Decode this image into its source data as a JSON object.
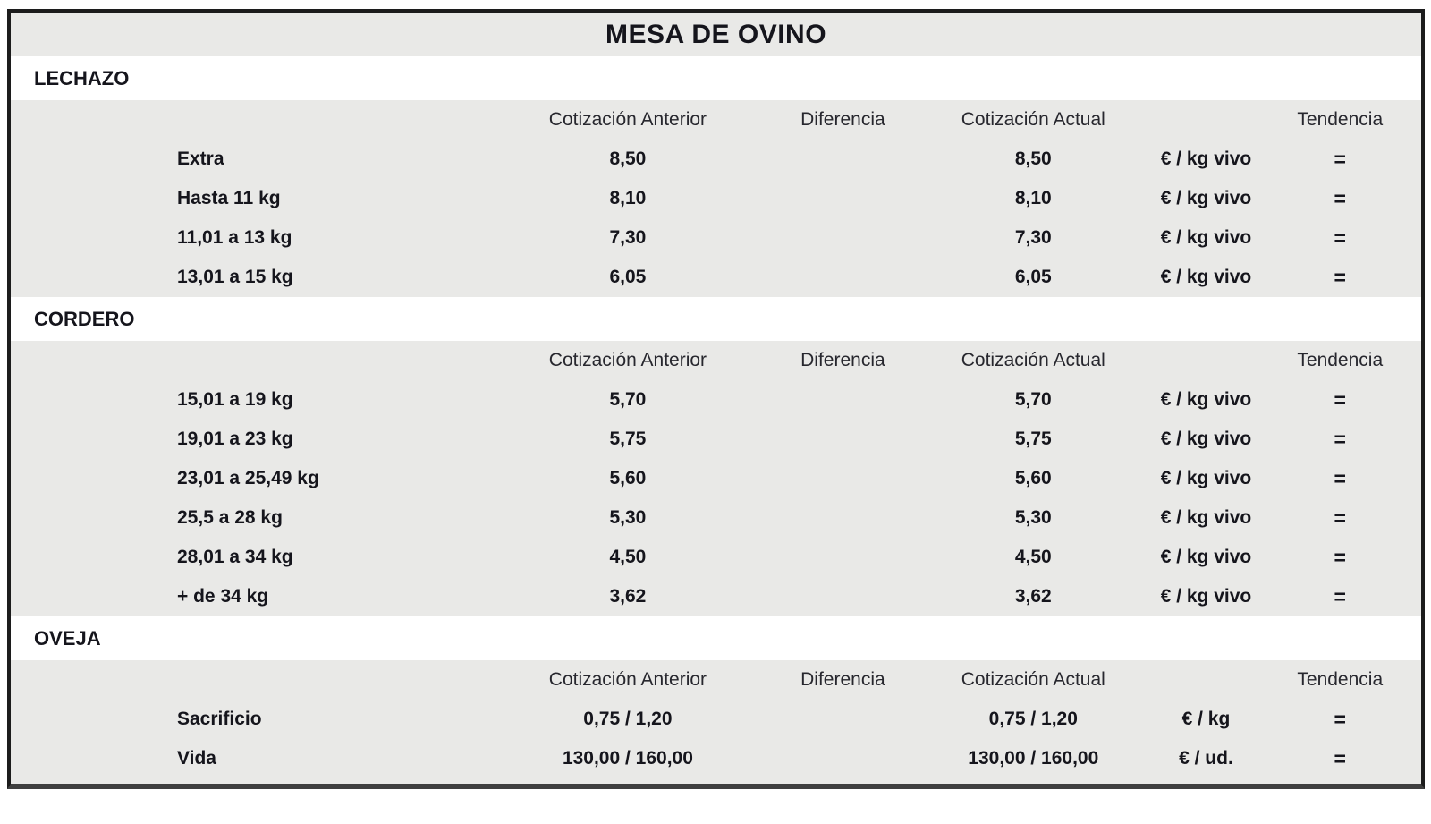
{
  "title": "MESA DE OVINO",
  "columns": {
    "anterior": "Cotización Anterior",
    "diferencia": "Diferencia",
    "actual": "Cotización Actual",
    "tendencia": "Tendencia"
  },
  "colors": {
    "band_gray": "#e9e9e7",
    "band_white": "#ffffff",
    "border_dark": "#1c1c1c",
    "border_bottom": "#3f3f3f",
    "text": "#15151c"
  },
  "trend_equal_symbol": "=",
  "sections": [
    {
      "name": "LECHAZO",
      "rows": [
        {
          "label": "Extra",
          "anterior": "8,50",
          "diferencia": "",
          "actual": "8,50",
          "unit": "€ / kg vivo",
          "tendencia": "="
        },
        {
          "label": "Hasta 11 kg",
          "anterior": "8,10",
          "diferencia": "",
          "actual": "8,10",
          "unit": "€ / kg vivo",
          "tendencia": "="
        },
        {
          "label": "11,01 a 13 kg",
          "anterior": "7,30",
          "diferencia": "",
          "actual": "7,30",
          "unit": "€ / kg vivo",
          "tendencia": "="
        },
        {
          "label": "13,01 a 15 kg",
          "anterior": "6,05",
          "diferencia": "",
          "actual": "6,05",
          "unit": "€ / kg vivo",
          "tendencia": "="
        }
      ]
    },
    {
      "name": "CORDERO",
      "rows": [
        {
          "label": "15,01 a 19 kg",
          "anterior": "5,70",
          "diferencia": "",
          "actual": "5,70",
          "unit": "€ / kg vivo",
          "tendencia": "="
        },
        {
          "label": "19,01 a 23 kg",
          "anterior": "5,75",
          "diferencia": "",
          "actual": "5,75",
          "unit": "€ / kg vivo",
          "tendencia": "="
        },
        {
          "label": "23,01 a 25,49 kg",
          "anterior": "5,60",
          "diferencia": "",
          "actual": "5,60",
          "unit": "€ / kg vivo",
          "tendencia": "="
        },
        {
          "label": "25,5 a 28 kg",
          "anterior": "5,30",
          "diferencia": "",
          "actual": "5,30",
          "unit": "€ / kg vivo",
          "tendencia": "="
        },
        {
          "label": "28,01 a 34 kg",
          "anterior": "4,50",
          "diferencia": "",
          "actual": "4,50",
          "unit": "€ / kg vivo",
          "tendencia": "="
        },
        {
          "label": "+ de 34 kg",
          "anterior": "3,62",
          "diferencia": "",
          "actual": "3,62",
          "unit": "€ / kg vivo",
          "tendencia": "="
        }
      ]
    },
    {
      "name": "OVEJA",
      "rows": [
        {
          "label": "Sacrificio",
          "anterior": "0,75 / 1,20",
          "diferencia": "",
          "actual": "0,75 / 1,20",
          "unit": "€ / kg",
          "tendencia": "="
        },
        {
          "label": "Vida",
          "anterior": "130,00 / 160,00",
          "diferencia": "",
          "actual": "130,00 / 160,00",
          "unit": "€ / ud.",
          "tendencia": "="
        }
      ]
    }
  ]
}
